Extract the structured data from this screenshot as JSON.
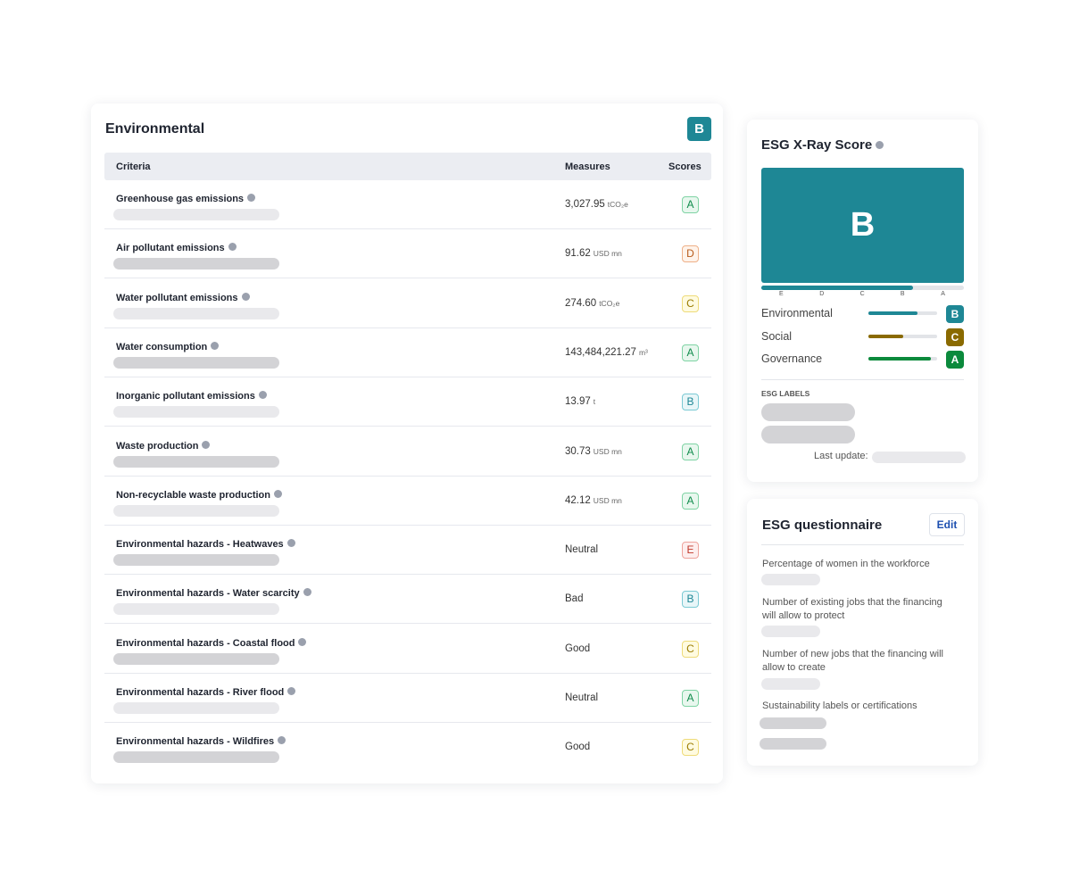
{
  "environmental": {
    "title": "Environmental",
    "grade": "B",
    "columns": [
      "Criteria",
      "Measures",
      "Scores"
    ],
    "rows": [
      {
        "criterion": "Greenhouse gas emissions",
        "measure": "3,027.95",
        "unit": "tCO₂e",
        "score": "A"
      },
      {
        "criterion": "Air pollutant emissions",
        "measure": "91.62",
        "unit": "USD mn",
        "score": "D"
      },
      {
        "criterion": "Water pollutant emissions",
        "measure": "274.60",
        "unit": "tCO₂e",
        "score": "C"
      },
      {
        "criterion": "Water consumption",
        "measure": "143,484,221.27",
        "unit": "m³",
        "score": "A"
      },
      {
        "criterion": "Inorganic pollutant emissions",
        "measure": "13.97",
        "unit": "t",
        "score": "B"
      },
      {
        "criterion": "Waste production",
        "measure": "30.73",
        "unit": "USD mn",
        "score": "A"
      },
      {
        "criterion": "Non-recyclable waste production",
        "measure": "42.12",
        "unit": "USD mn",
        "score": "A"
      },
      {
        "criterion": "Environmental hazards - Heatwaves",
        "measure": "Neutral",
        "score": "E"
      },
      {
        "criterion": "Environmental hazards - Water scarcity",
        "measure": "Bad",
        "score": "B"
      },
      {
        "criterion": "Environmental hazards - Coastal flood",
        "measure": "Good",
        "score": "C"
      },
      {
        "criterion": "Environmental hazards - River flood",
        "measure": "Neutral",
        "score": "A"
      },
      {
        "criterion": "Environmental hazards - Wildfires",
        "measure": "Good",
        "score": "C"
      }
    ]
  },
  "xray": {
    "title": "ESG X-Ray Score",
    "grade": "B",
    "progress": 75,
    "scale": [
      "E",
      "D",
      "C",
      "B",
      "A"
    ],
    "pillars": [
      {
        "name": "Environmental",
        "grade": "B",
        "progress": 71
      },
      {
        "name": "Social",
        "grade": "C",
        "progress": 51
      },
      {
        "name": "Governance",
        "grade": "A",
        "progress": 91
      }
    ],
    "labels_title": "ESG LABELS",
    "last_update": "Last update:"
  },
  "questionnaire": {
    "title": "ESG questionnaire",
    "edit": "Edit",
    "questions": [
      "Percentage of women in the workforce",
      "Number of existing jobs that the financing will allow to protect",
      "Number of new jobs that the financing will allow to create",
      "Sustainability labels or certifications"
    ]
  }
}
